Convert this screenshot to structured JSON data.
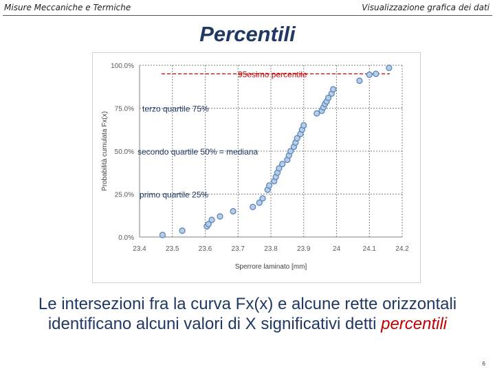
{
  "header": {
    "left": "Misure Meccaniche e Termiche",
    "right": "Visualizzazione grafica dei dati"
  },
  "title": "Percentili",
  "chart_data": {
    "type": "scatter",
    "xlabel": "Sperrore laminato [mm]",
    "ylabel": "Probabilità cumulata Fx(x)",
    "xlim": [
      23.4,
      24.2
    ],
    "ylim": [
      0,
      1
    ],
    "x_ticks": [
      "23.4",
      "23.5",
      "23.6",
      "23.7",
      "23.8",
      "23.9",
      "24",
      "24.1",
      "24.2"
    ],
    "y_ticks": [
      "0.0%",
      "25.0%",
      "50.0%",
      "75.0%",
      "100.0%"
    ],
    "grid": true,
    "marker_fill": "#b8cce4",
    "marker_stroke": "#4f81bd",
    "series": [
      {
        "x": [
          23.47,
          23.53,
          23.605,
          23.61,
          23.62,
          23.645,
          23.685,
          23.745,
          23.765,
          23.775,
          23.79,
          23.795,
          23.81,
          23.815,
          23.82,
          23.825,
          23.835,
          23.85,
          23.855,
          23.86,
          23.87,
          23.875,
          23.88,
          23.89,
          23.895,
          23.9,
          23.94,
          23.955,
          23.96,
          23.965,
          23.97,
          23.975,
          23.985,
          23.99,
          24.07,
          24.1,
          24.12,
          24.16
        ],
        "y": [
          0.012,
          0.037,
          0.062,
          0.075,
          0.1,
          0.12,
          0.15,
          0.175,
          0.2,
          0.225,
          0.275,
          0.3,
          0.325,
          0.35,
          0.375,
          0.4,
          0.425,
          0.45,
          0.475,
          0.5,
          0.525,
          0.55,
          0.575,
          0.6,
          0.625,
          0.65,
          0.72,
          0.735,
          0.755,
          0.775,
          0.79,
          0.81,
          0.835,
          0.86,
          0.91,
          0.945,
          0.95,
          0.985
        ]
      }
    ],
    "annotations": [
      {
        "text": "95esimo percentile",
        "y": 0.95,
        "color": "#c00000",
        "line_style": "dashed",
        "line_color": "#c00000"
      },
      {
        "text": "terzo quartile   75%",
        "y": 0.75,
        "color": "#1f3864",
        "line_style": "dotted",
        "line_color": "#555555"
      },
      {
        "text": "secondo quartile 50%  = mediana",
        "y": 0.5,
        "color": "#1f3864",
        "line_style": "dotted",
        "line_color": "#555555"
      },
      {
        "text": "primo quartile   25%",
        "y": 0.25,
        "color": "#1f3864",
        "line_style": "dotted",
        "line_color": "#555555"
      }
    ]
  },
  "caption": {
    "part1": "Le intersezioni fra la curva Fx(x) e alcune rette orizzontali identificano alcuni valori di X significativi detti ",
    "emph": "percentili"
  },
  "page_number": "6"
}
